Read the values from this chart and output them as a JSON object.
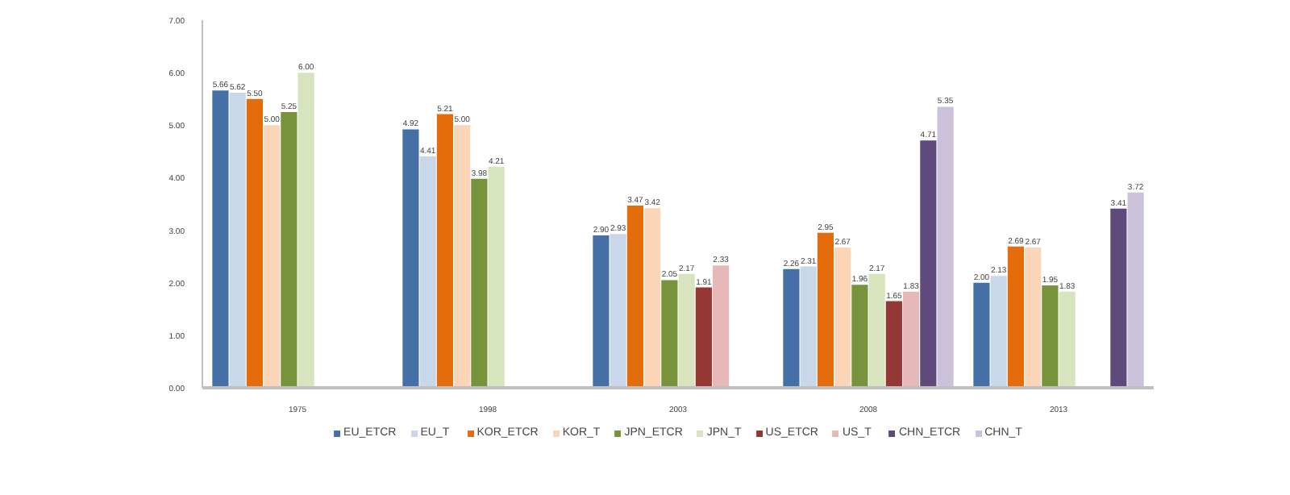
{
  "chart_data": {
    "type": "bar",
    "categories": [
      "1975",
      "1998",
      "2003",
      "2008",
      "2013"
    ],
    "series": [
      {
        "name": "EU_ETCR",
        "color": "#4470a5",
        "values": [
          5.66,
          4.92,
          2.9,
          2.26,
          2.0
        ],
        "value_labels": [
          "5.66",
          "4.92",
          "2.90",
          "2.26",
          "2.00"
        ]
      },
      {
        "name": "EU_T",
        "color": "#c9d7ea",
        "values": [
          5.62,
          4.41,
          2.93,
          2.31,
          2.13
        ],
        "value_labels": [
          "5.62",
          "4.41",
          "2.93",
          "2.31",
          "2.13"
        ]
      },
      {
        "name": "KOR_ETCR",
        "color": "#e46c0a",
        "values": [
          5.5,
          5.21,
          3.47,
          2.95,
          2.69
        ],
        "value_labels": [
          "5.50",
          "5.21",
          "3.47",
          "2.95",
          "2.69"
        ]
      },
      {
        "name": "KOR_T",
        "color": "#fad5b8",
        "values": [
          5.0,
          5.0,
          3.42,
          2.67,
          2.67
        ],
        "value_labels": [
          "5.00",
          "5.00",
          "3.42",
          "2.67",
          "2.67"
        ]
      },
      {
        "name": "JPN_ETCR",
        "color": "#77933c",
        "values": [
          5.25,
          3.98,
          2.05,
          1.96,
          1.95
        ],
        "value_labels": [
          "5.25",
          "3.98",
          "2.05",
          "1.96",
          "1.95"
        ]
      },
      {
        "name": "JPN_T",
        "color": "#d7e4bd",
        "values": [
          6.0,
          4.21,
          2.17,
          2.17,
          1.83
        ],
        "value_labels": [
          "6.00",
          "4.21",
          "2.17",
          "2.17",
          "1.83"
        ]
      },
      {
        "name": "US_ETCR",
        "color": "#953735",
        "values": [
          null,
          null,
          1.91,
          1.65,
          null
        ],
        "value_labels": [
          null,
          null,
          "1.91",
          "1.65",
          null
        ]
      },
      {
        "name": "US_T",
        "color": "#e6b9b8",
        "values": [
          null,
          null,
          2.33,
          1.83,
          null
        ],
        "value_labels": [
          null,
          null,
          "2.33",
          "1.83",
          null
        ]
      },
      {
        "name": "CHN_ETCR",
        "color": "#604a7b",
        "values": [
          null,
          null,
          null,
          4.71,
          3.41
        ],
        "value_labels": [
          null,
          null,
          null,
          "4.71",
          "3.41"
        ]
      },
      {
        "name": "CHN_T",
        "color": "#ccc1da",
        "values": [
          null,
          null,
          null,
          5.35,
          3.72
        ],
        "value_labels": [
          null,
          null,
          null,
          "5.35",
          "3.72"
        ]
      }
    ],
    "ylim": [
      0,
      7
    ],
    "yticks": [
      {
        "value": 0,
        "label": "0.00"
      },
      {
        "value": 1,
        "label": "1.00"
      },
      {
        "value": 2,
        "label": "2.00"
      },
      {
        "value": 3,
        "label": "3.00"
      },
      {
        "value": 4,
        "label": "4.00"
      },
      {
        "value": 5,
        "label": "5.00"
      },
      {
        "value": 6,
        "label": "6.00"
      },
      {
        "value": 7,
        "label": "7.00"
      }
    ],
    "grid": false,
    "legend": "bottom"
  }
}
